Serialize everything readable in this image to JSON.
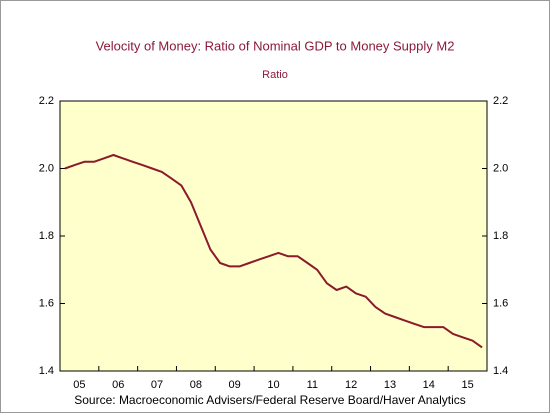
{
  "chart_data": {
    "type": "line",
    "title": "Velocity of Money: Ratio of Nominal GDP to Money Supply M2",
    "subtitle": "Ratio",
    "source": "Source:  Macroeconomic Advisers/Federal Reserve Board/Haver Analytics",
    "categories": [
      "05",
      null,
      null,
      null,
      "06",
      null,
      null,
      null,
      "07",
      null,
      null,
      null,
      "08",
      null,
      null,
      null,
      "09",
      null,
      null,
      null,
      "10",
      null,
      null,
      null,
      "11",
      null,
      null,
      null,
      "12",
      null,
      null,
      null,
      "13",
      null,
      null,
      null,
      "14",
      null,
      null,
      null,
      "15",
      null,
      null,
      null
    ],
    "series": [
      {
        "name": "Ratio",
        "color": "#8b1a2b",
        "values": [
          2.0,
          2.01,
          2.02,
          2.02,
          2.03,
          2.04,
          2.03,
          2.02,
          2.01,
          2.0,
          1.99,
          1.97,
          1.95,
          1.9,
          1.83,
          1.76,
          1.72,
          1.71,
          1.71,
          1.72,
          1.73,
          1.74,
          1.75,
          1.74,
          1.74,
          1.72,
          1.7,
          1.66,
          1.64,
          1.65,
          1.63,
          1.62,
          1.59,
          1.57,
          1.56,
          1.55,
          1.54,
          1.53,
          1.53,
          1.53,
          1.51,
          1.5,
          1.49,
          1.47
        ]
      }
    ],
    "ylim": [
      1.4,
      2.2
    ],
    "yticks": [
      1.4,
      1.6,
      1.8,
      {
        "value": 2,
        "label": "2.0"
      },
      2.2
    ]
  }
}
